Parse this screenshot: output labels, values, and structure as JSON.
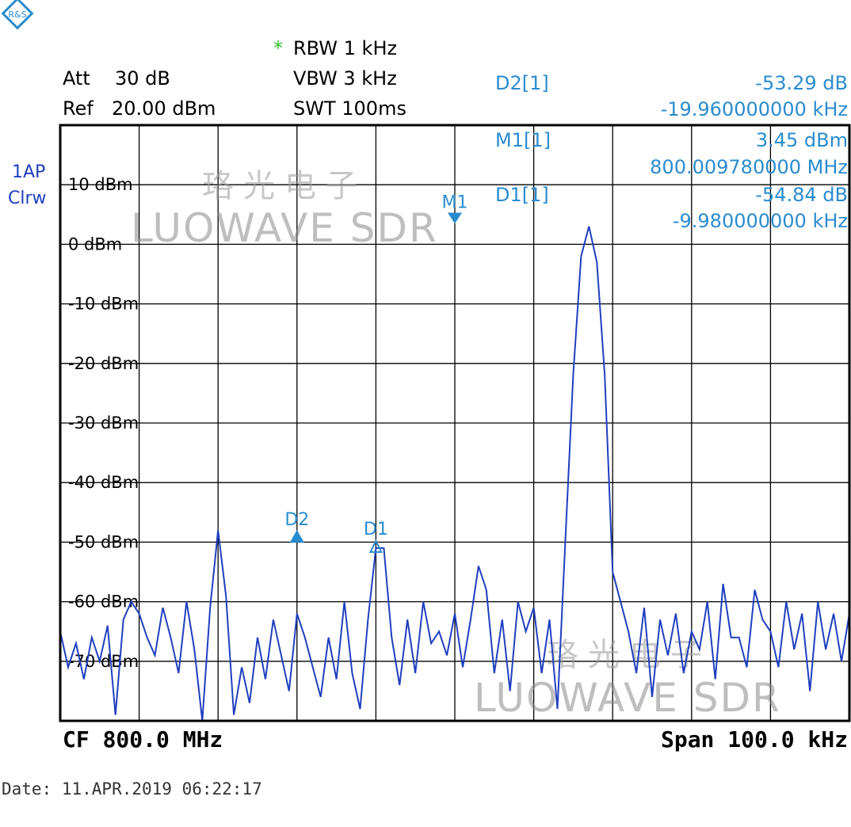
{
  "logo_text": "R&S",
  "header": {
    "rbw_star": "*",
    "rbw": "RBW 1 kHz",
    "att_label": "Att",
    "att_value": "30 dB",
    "vbw": "VBW 3 kHz",
    "ref_label": "Ref",
    "ref_value": "20.00 dBm",
    "swt": "SWT 100ms"
  },
  "trace": {
    "line1": "1AP",
    "line2": "Clrw",
    "color": "#1f3fbf"
  },
  "marker_readout": [
    {
      "name": "D2[1]",
      "value": "-53.29 dB",
      "freq": "-19.960000000 kHz"
    },
    {
      "name": "M1[1]",
      "value": "3.45 dBm",
      "freq": "800.009780000 MHz"
    },
    {
      "name": "D1[1]",
      "value": "-54.84 dB",
      "freq": "-9.980000000 kHz"
    }
  ],
  "watermark": {
    "cn": "珞光电子",
    "en": "LUOWAVE SDR"
  },
  "footer": {
    "cf": "CF 800.0 MHz",
    "span": "Span 100.0 kHz"
  },
  "date": "Date: 11.APR.2019  06:22:17",
  "chart_data": {
    "type": "line",
    "xlabel": "",
    "ylabel": "",
    "x_unit": "kHz offset from CF",
    "xlim": [
      -50,
      50
    ],
    "ylim": [
      -80,
      20
    ],
    "grid": true,
    "y_ticks": [
      {
        "v": 10,
        "label": "10 dBm"
      },
      {
        "v": 0,
        "label": "0 dBm"
      },
      {
        "v": -10,
        "label": "-10 dBm"
      },
      {
        "v": -20,
        "label": "-20 dBm"
      },
      {
        "v": -30,
        "label": "-30 dBm"
      },
      {
        "v": -40,
        "label": "-40 dBm"
      },
      {
        "v": -50,
        "label": "-50 dBm"
      },
      {
        "v": -60,
        "label": "-60 dBm"
      },
      {
        "v": -70,
        "label": "-70 dBm"
      }
    ],
    "x": [
      -50,
      -49,
      -48,
      -47,
      -46,
      -45,
      -44,
      -43,
      -42,
      -41,
      -40,
      -39,
      -38,
      -37,
      -36,
      -35,
      -34,
      -33,
      -32,
      -31,
      -30,
      -29,
      -28,
      -27,
      -26,
      -25,
      -24,
      -23,
      -22,
      -21,
      -20,
      -19,
      -18,
      -17,
      -16,
      -15,
      -14,
      -13,
      -12,
      -11,
      -10,
      -9,
      -8,
      -7,
      -6,
      -5,
      -4,
      -3,
      -2,
      -1,
      0,
      1,
      2,
      3,
      4,
      5,
      6,
      7,
      8,
      9,
      10,
      11,
      12,
      13,
      14,
      15,
      16,
      17,
      18,
      19,
      20,
      21,
      22,
      23,
      24,
      25,
      26,
      27,
      28,
      29,
      30,
      31,
      32,
      33,
      34,
      35,
      36,
      37,
      38,
      39,
      40,
      41,
      42,
      43,
      44,
      45,
      46,
      47,
      48,
      49,
      50
    ],
    "values": [
      -65,
      -71,
      -67,
      -73,
      -66,
      -70,
      -64,
      -79,
      -63,
      -60,
      -62,
      -66,
      -69,
      -61,
      -66,
      -72,
      -60,
      -68,
      -80,
      -61,
      -48,
      -59,
      -79,
      -71,
      -77,
      -66,
      -73,
      -63,
      -69,
      -75,
      -62,
      -66,
      -71,
      -76,
      -66,
      -73,
      -60,
      -72,
      -78,
      -63,
      -51,
      -51,
      -66,
      -74,
      -63,
      -72,
      -60,
      -67,
      -65,
      -69,
      -62,
      -71,
      -63,
      -54,
      -58,
      -72,
      -63,
      -75,
      -60,
      -65,
      -61,
      -72,
      -63,
      -78,
      -50,
      -22,
      -2,
      3,
      -3,
      -22,
      -55,
      -60,
      -65,
      -72,
      -61,
      -76,
      -63,
      -69,
      -62,
      -72,
      -65,
      -68,
      -60,
      -73,
      -57,
      -66,
      -66,
      -71,
      -58,
      -63,
      -65,
      -71,
      -60,
      -68,
      -62,
      -75,
      -60,
      -68,
      -62,
      -70,
      -62
    ],
    "markers": [
      {
        "label": "M1",
        "x": 0,
        "y": 3.45
      },
      {
        "label": "D1",
        "x": -10,
        "y": -51.4
      },
      {
        "label": "D2",
        "x": -20,
        "y": -49.8
      }
    ],
    "marker_color": "#2a8ccf"
  }
}
